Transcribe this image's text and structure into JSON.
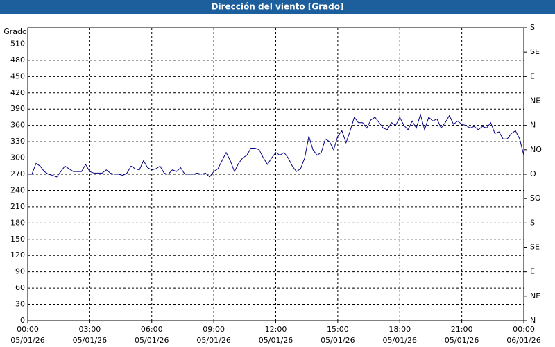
{
  "chart_data": {
    "type": "line",
    "title": "Dirección del viento [Grado]",
    "ylabel": "Grado",
    "x": [
      0,
      0.2,
      0.4,
      0.6,
      0.8,
      1,
      1.2,
      1.4,
      1.6,
      1.8,
      2,
      2.2,
      2.4,
      2.6,
      2.8,
      3,
      3.2,
      3.4,
      3.6,
      3.8,
      4,
      4.2,
      4.4,
      4.6,
      4.8,
      5,
      5.2,
      5.4,
      5.6,
      5.8,
      6,
      6.2,
      6.4,
      6.6,
      6.8,
      7,
      7.2,
      7.4,
      7.6,
      7.8,
      8,
      8.2,
      8.4,
      8.6,
      8.8,
      9,
      9.2,
      9.4,
      9.6,
      9.8,
      10,
      10.2,
      10.4,
      10.6,
      10.8,
      11,
      11.2,
      11.4,
      11.6,
      11.8,
      12,
      12.2,
      12.4,
      12.6,
      12.8,
      13,
      13.2,
      13.4,
      13.6,
      13.8,
      14,
      14.2,
      14.4,
      14.6,
      14.8,
      15,
      15.2,
      15.4,
      15.6,
      15.8,
      16,
      16.2,
      16.4,
      16.6,
      16.8,
      17,
      17.2,
      17.4,
      17.6,
      17.8,
      18,
      18.2,
      18.4,
      18.6,
      18.8,
      19,
      19.2,
      19.4,
      19.6,
      19.8,
      20,
      20.2,
      20.4,
      20.6,
      20.8,
      21,
      21.2,
      21.4,
      21.6,
      21.8,
      22,
      22.2,
      22.4,
      22.6,
      22.8,
      23,
      23.2,
      23.4,
      23.6,
      23.8,
      24
    ],
    "series": [
      {
        "name": "Dirección del viento",
        "color": "#000080",
        "values": [
          270,
          270,
          290,
          285,
          275,
          270,
          268,
          265,
          275,
          285,
          280,
          275,
          275,
          275,
          288,
          275,
          272,
          272,
          272,
          278,
          272,
          270,
          270,
          268,
          272,
          285,
          280,
          278,
          295,
          282,
          278,
          280,
          285,
          272,
          270,
          278,
          275,
          282,
          270,
          270,
          270,
          272,
          270,
          272,
          265,
          275,
          280,
          295,
          310,
          295,
          275,
          290,
          300,
          305,
          318,
          318,
          315,
          300,
          288,
          300,
          310,
          305,
          310,
          300,
          285,
          275,
          280,
          300,
          340,
          315,
          305,
          310,
          335,
          330,
          315,
          340,
          350,
          328,
          350,
          375,
          365,
          365,
          355,
          370,
          375,
          365,
          355,
          352,
          365,
          360,
          375,
          360,
          352,
          368,
          355,
          380,
          352,
          375,
          368,
          372,
          355,
          365,
          378,
          362,
          368,
          362,
          360,
          355,
          358,
          352,
          358,
          355,
          365,
          345,
          348,
          335,
          335,
          345,
          350,
          335,
          305
        ]
      }
    ],
    "xlim": [
      0,
      24
    ],
    "xticks": [
      {
        "value": 0,
        "label": [
          "00:00",
          "05/01/26"
        ]
      },
      {
        "value": 3,
        "label": [
          "03:00",
          "05/01/26"
        ]
      },
      {
        "value": 6,
        "label": [
          "06:00",
          "05/01/26"
        ]
      },
      {
        "value": 9,
        "label": [
          "09:00",
          "05/01/26"
        ]
      },
      {
        "value": 12,
        "label": [
          "12:00",
          "05/01/26"
        ]
      },
      {
        "value": 15,
        "label": [
          "15:00",
          "05/01/26"
        ]
      },
      {
        "value": 18,
        "label": [
          "18:00",
          "05/01/26"
        ]
      },
      {
        "value": 21,
        "label": [
          "21:00",
          "05/01/26"
        ]
      },
      {
        "value": 24,
        "label": [
          "00:00",
          "06/01/26"
        ]
      }
    ],
    "ylim": [
      0,
      540
    ],
    "yticks": [
      0,
      30,
      60,
      90,
      120,
      150,
      180,
      210,
      240,
      270,
      300,
      330,
      360,
      390,
      420,
      450,
      480,
      510
    ],
    "y2lim": [
      0,
      540
    ],
    "y2ticks": [
      {
        "value": 0,
        "label": "N"
      },
      {
        "value": 45,
        "label": "NE"
      },
      {
        "value": 90,
        "label": "E"
      },
      {
        "value": 135,
        "label": "SE"
      },
      {
        "value": 180,
        "label": "S"
      },
      {
        "value": 225,
        "label": "SO"
      },
      {
        "value": 270,
        "label": "O"
      },
      {
        "value": 315,
        "label": "NO"
      },
      {
        "value": 360,
        "label": "N"
      },
      {
        "value": 405,
        "label": "NE"
      },
      {
        "value": 450,
        "label": "E"
      },
      {
        "value": 495,
        "label": "SE"
      },
      {
        "value": 540,
        "label": "S"
      }
    ],
    "grid": true
  }
}
